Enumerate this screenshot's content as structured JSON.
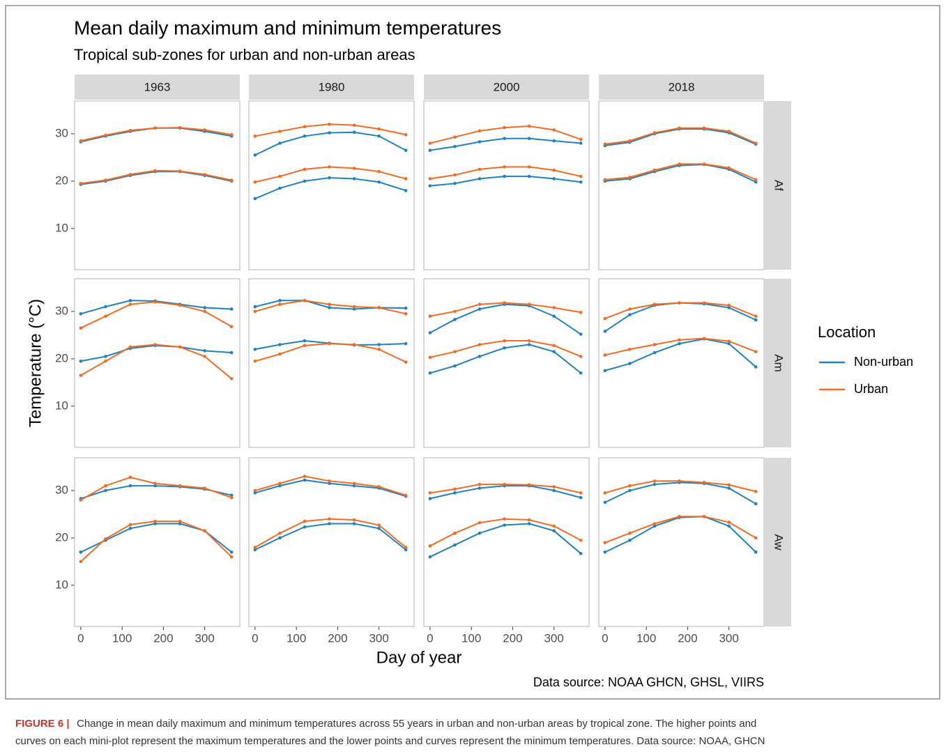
{
  "chart_data": {
    "type": "line",
    "title": "Mean daily maximum and minimum temperatures",
    "subtitle": "Tropical sub-zones for urban and non-urban areas",
    "x_label": "Day of year",
    "y_label": "Temperature (°C)",
    "source": "Data source: NOAA GHCN, GHSL, VIIRS",
    "caption_label": "FIGURE 6 |",
    "caption_lines": [
      "Change in mean daily maximum and minimum temperatures across 55 years in urban and non-urban areas by tropical zone. The higher points and",
      "curves on each mini-plot represent the maximum temperatures and the lower points and curves represent the minimum temperatures. Data source: NOAA, GHCN"
    ],
    "columns": [
      "1963",
      "1980",
      "2000",
      "2018"
    ],
    "rows": [
      "Af",
      "Am",
      "Aw"
    ],
    "legend_title": "Location",
    "legend_position": "right",
    "series": [
      {
        "name": "Non-urban",
        "color": "#1f82c0"
      },
      {
        "name": "Urban",
        "color": "#f26b21"
      }
    ],
    "x": [
      0,
      60,
      120,
      180,
      240,
      300,
      365
    ],
    "xlim": [
      -15,
      385
    ],
    "xticks": [
      0,
      100,
      200,
      300
    ],
    "ylim": [
      1.3,
      36.9
    ],
    "yticks": [
      10,
      20,
      30
    ],
    "grid": false,
    "panels": [
      {
        "non_urban_max": [
          28.3,
          29.5,
          30.5,
          31.2,
          31.2,
          30.5,
          29.5
        ],
        "urban_max": [
          28.5,
          29.7,
          30.7,
          31.2,
          31.3,
          30.8,
          29.8
        ],
        "non_urban_min": [
          19.3,
          20,
          21.2,
          22,
          22,
          21.2,
          20
        ],
        "urban_min": [
          19.5,
          20.2,
          21.4,
          22.2,
          22.1,
          21.4,
          20.2
        ]
      },
      {
        "non_urban_max": [
          25.5,
          28,
          29.5,
          30.2,
          30.3,
          29.5,
          26.5
        ],
        "urban_max": [
          29.5,
          30.5,
          31.5,
          32,
          31.8,
          31,
          29.8
        ],
        "non_urban_min": [
          16.3,
          18.5,
          20,
          20.7,
          20.5,
          19.8,
          18
        ],
        "urban_min": [
          19.8,
          21,
          22.5,
          23,
          22.7,
          22,
          20.5
        ]
      },
      {
        "non_urban_max": [
          26.5,
          27.3,
          28.3,
          29,
          29,
          28.5,
          28
        ],
        "urban_max": [
          28,
          29.3,
          30.6,
          31.3,
          31.6,
          30.8,
          28.8
        ],
        "non_urban_min": [
          19,
          19.5,
          20.5,
          21,
          21,
          20.5,
          19.8
        ],
        "urban_min": [
          20.5,
          21.3,
          22.5,
          23,
          23,
          22.3,
          21
        ]
      },
      {
        "non_urban_max": [
          27.5,
          28.2,
          30,
          31,
          31,
          30.2,
          27.8
        ],
        "urban_max": [
          27.8,
          28.5,
          30.2,
          31.2,
          31.2,
          30.5,
          28
        ],
        "non_urban_min": [
          20,
          20.5,
          22,
          23.3,
          23.5,
          22.5,
          19.8
        ],
        "urban_min": [
          20.3,
          20.8,
          22.3,
          23.6,
          23.6,
          22.8,
          20.3
        ]
      },
      {
        "non_urban_max": [
          29.5,
          31,
          32.3,
          32.2,
          31.5,
          30.8,
          30.5
        ],
        "urban_max": [
          26.5,
          29,
          31.5,
          32,
          31.3,
          30,
          26.8
        ],
        "non_urban_min": [
          19.5,
          20.5,
          22.2,
          22.8,
          22.5,
          21.7,
          21.3
        ],
        "urban_min": [
          16.5,
          19.5,
          22.5,
          23,
          22.5,
          20.5,
          15.8
        ]
      },
      {
        "non_urban_max": [
          31,
          32.3,
          32.3,
          30.8,
          30.5,
          30.8,
          30.7
        ],
        "urban_max": [
          30,
          31.5,
          32.3,
          31.5,
          31,
          30.8,
          29.5
        ],
        "non_urban_min": [
          22,
          23,
          23.8,
          23.3,
          22.9,
          23,
          23.2
        ],
        "urban_min": [
          19.5,
          21,
          22.8,
          23.2,
          23,
          22,
          19.3
        ]
      },
      {
        "non_urban_max": [
          25.5,
          28.3,
          30.5,
          31.5,
          31.2,
          29,
          25.2
        ],
        "urban_max": [
          29,
          30,
          31.5,
          31.8,
          31.5,
          30.8,
          29.8
        ],
        "non_urban_min": [
          17,
          18.5,
          20.5,
          22.3,
          23,
          21.5,
          17
        ],
        "urban_min": [
          20.3,
          21.5,
          23,
          23.8,
          23.8,
          22.8,
          20.5
        ]
      },
      {
        "non_urban_max": [
          25.8,
          29.3,
          31.3,
          31.8,
          31.6,
          30.8,
          28.2
        ],
        "urban_max": [
          28.5,
          30.5,
          31.5,
          31.8,
          31.8,
          31.3,
          29
        ],
        "non_urban_min": [
          17.5,
          19,
          21.3,
          23.2,
          24.2,
          23.2,
          18.3
        ],
        "urban_min": [
          20.8,
          22,
          23,
          24,
          24.3,
          23.7,
          21.5
        ]
      },
      {
        "non_urban_max": [
          28.3,
          30,
          31,
          31,
          30.8,
          30.3,
          29
        ],
        "urban_max": [
          28,
          31,
          32.8,
          31.5,
          31,
          30.5,
          28.5
        ],
        "non_urban_min": [
          17,
          19.5,
          22,
          23,
          23,
          21.5,
          17
        ],
        "urban_min": [
          15,
          19.8,
          22.8,
          23.5,
          23.5,
          21.5,
          16
        ]
      },
      {
        "non_urban_max": [
          29.5,
          31,
          32.2,
          31.5,
          31,
          30.5,
          28.8
        ],
        "urban_max": [
          30,
          31.5,
          33,
          32,
          31.5,
          30.8,
          29
        ],
        "non_urban_min": [
          17.5,
          20,
          22.3,
          23,
          23,
          22,
          17.5
        ],
        "urban_min": [
          18,
          21,
          23.5,
          24,
          23.8,
          22.7,
          18
        ]
      },
      {
        "non_urban_max": [
          28.3,
          29.5,
          30.5,
          31,
          31,
          30,
          28.5
        ],
        "urban_max": [
          29.5,
          30.3,
          31.3,
          31.3,
          31.2,
          30.8,
          29.5
        ],
        "non_urban_min": [
          16,
          18.5,
          21,
          22.7,
          23,
          21.5,
          16.7
        ],
        "urban_min": [
          18.3,
          21,
          23.2,
          24,
          23.8,
          22.5,
          19.5
        ]
      },
      {
        "non_urban_max": [
          27.5,
          30,
          31.3,
          31.7,
          31.5,
          30.5,
          27.2
        ],
        "urban_max": [
          29.5,
          31,
          32,
          32,
          31.7,
          31.2,
          29.8
        ],
        "non_urban_min": [
          17,
          19.5,
          22.5,
          24.3,
          24.5,
          22.5,
          17
        ],
        "urban_min": [
          19,
          21,
          23,
          24.5,
          24.5,
          23.3,
          20
        ]
      }
    ]
  }
}
